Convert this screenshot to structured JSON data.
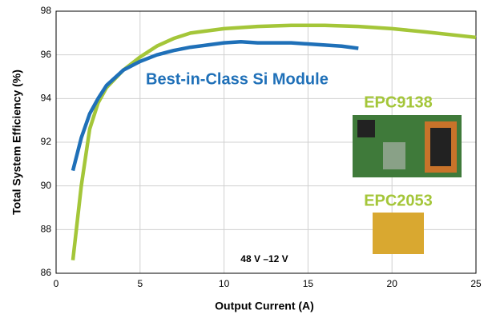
{
  "chart_data": {
    "type": "line",
    "xlabel": "Output Current (A)",
    "ylabel": "Total System Efficiency (%)",
    "xlim": [
      0,
      25
    ],
    "xticks": [
      0,
      5,
      10,
      15,
      20,
      25
    ],
    "ylim": [
      86,
      98
    ],
    "yticks": [
      86,
      88,
      90,
      92,
      94,
      96,
      98
    ],
    "grid": true,
    "series": [
      {
        "name": "EPC9138",
        "color": "#a4c639",
        "x": [
          1,
          1.5,
          2,
          2.5,
          3,
          4,
          5,
          6,
          7,
          8,
          9,
          10,
          12,
          14,
          16,
          18,
          20,
          22,
          25
        ],
        "values": [
          86.6,
          90,
          92.6,
          93.8,
          94.5,
          95.3,
          95.9,
          96.4,
          96.75,
          97,
          97.1,
          97.2,
          97.3,
          97.35,
          97.35,
          97.3,
          97.2,
          97.05,
          96.8
        ]
      },
      {
        "name": "Best-in-Class Si Module",
        "color": "#1f70b8",
        "x": [
          1,
          1.5,
          2,
          2.5,
          3,
          4,
          5,
          6,
          7,
          8,
          9,
          10,
          11,
          12,
          13,
          14,
          15,
          16,
          17,
          18
        ],
        "values": [
          90.7,
          92.2,
          93.3,
          94,
          94.6,
          95.3,
          95.7,
          96,
          96.2,
          96.35,
          96.45,
          96.55,
          96.6,
          96.55,
          96.55,
          96.55,
          96.5,
          96.45,
          96.4,
          96.3
        ]
      }
    ],
    "annotations": {
      "condition": "48 V –12 V",
      "device": "EPC2053"
    }
  }
}
